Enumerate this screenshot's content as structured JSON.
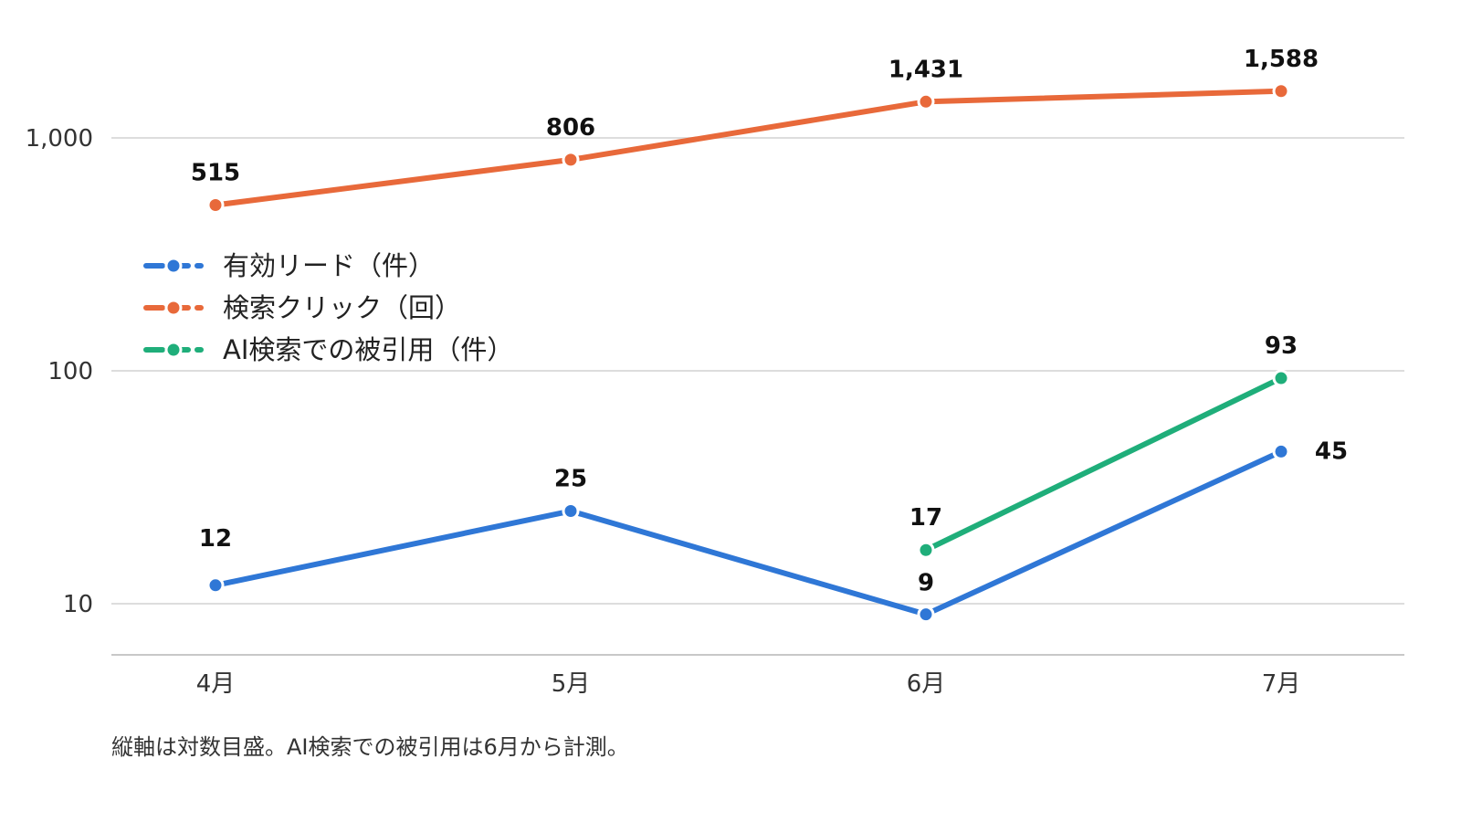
{
  "chart_data": {
    "type": "line",
    "categories": [
      "4月",
      "5月",
      "6月",
      "7月"
    ],
    "y_scale": "log",
    "ylim": [
      6,
      2200
    ],
    "y_ticks": [
      {
        "value": 10,
        "label": "10"
      },
      {
        "value": 100,
        "label": "100"
      },
      {
        "value": 1000,
        "label": "1,000"
      }
    ],
    "grid": true,
    "legend_position": "left-middle",
    "series": [
      {
        "name": "有効リード（件）",
        "color": "#2f77d6",
        "values": [
          12,
          25,
          9,
          45
        ],
        "labels": [
          "12",
          "25",
          "9",
          "45"
        ]
      },
      {
        "name": "検索クリック（回）",
        "color": "#e8693a",
        "values": [
          515,
          806,
          1431,
          1588
        ],
        "labels": [
          "515",
          "806",
          "1,431",
          "1,588"
        ]
      },
      {
        "name": "AI検索での被引用（件）",
        "color": "#1fae7a",
        "values": [
          null,
          null,
          17,
          93
        ],
        "labels": [
          "",
          "",
          "17",
          "93"
        ]
      }
    ],
    "note": "縦軸は対数目盛。AI検索での被引用は6月から計測。"
  }
}
